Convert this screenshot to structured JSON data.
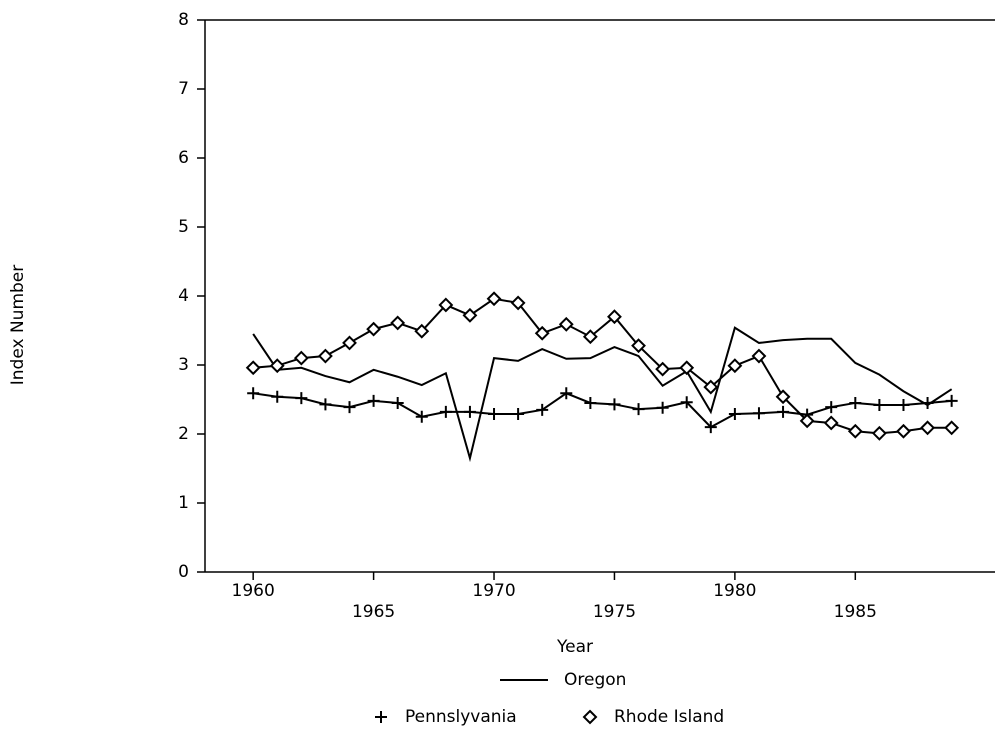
{
  "chart_data": {
    "type": "line",
    "x_label": "Year",
    "y_label": "Index Number",
    "x": [
      1960,
      1961,
      1962,
      1963,
      1964,
      1965,
      1966,
      1967,
      1968,
      1969,
      1970,
      1971,
      1972,
      1973,
      1974,
      1975,
      1976,
      1977,
      1978,
      1979,
      1980,
      1981,
      1982,
      1983,
      1984,
      1985,
      1986,
      1987,
      1988,
      1989
    ],
    "series": [
      {
        "name": "Oregon",
        "marker": "none",
        "color": "#000000",
        "values": [
          3.45,
          2.93,
          2.96,
          2.84,
          2.75,
          2.93,
          2.83,
          2.71,
          2.88,
          1.65,
          3.1,
          3.06,
          3.23,
          3.09,
          3.1,
          3.26,
          3.13,
          2.7,
          2.91,
          2.32,
          3.54,
          3.32,
          3.36,
          3.38,
          3.38,
          3.03,
          2.86,
          2.62,
          2.42,
          2.65
        ]
      },
      {
        "name": "Pennslyvania",
        "marker": "plus",
        "color": "#000000",
        "values": [
          2.59,
          2.54,
          2.52,
          2.43,
          2.39,
          2.48,
          2.45,
          2.25,
          2.32,
          2.32,
          2.29,
          2.29,
          2.35,
          2.59,
          2.45,
          2.43,
          2.36,
          2.38,
          2.46,
          2.1,
          2.29,
          2.3,
          2.32,
          2.28,
          2.39,
          2.45,
          2.42,
          2.42,
          2.45,
          2.48
        ]
      },
      {
        "name": "Rhode Island",
        "marker": "diamond",
        "color": "#000000",
        "values": [
          2.96,
          2.99,
          3.1,
          3.13,
          3.32,
          3.52,
          3.61,
          3.49,
          3.87,
          3.72,
          3.96,
          3.9,
          3.46,
          3.59,
          3.41,
          3.7,
          3.28,
          2.94,
          2.96,
          2.68,
          2.99,
          3.13,
          2.54,
          2.19,
          2.16,
          2.04,
          2.01,
          2.04,
          2.09,
          2.09
        ]
      }
    ],
    "xlim": [
      1958,
      1990.8
    ],
    "xticks": [
      1960,
      1965,
      1970,
      1975,
      1980,
      1985
    ],
    "ylim": [
      0,
      8
    ],
    "yticks": [
      0,
      1,
      2,
      3,
      4,
      5,
      6,
      7,
      8
    ],
    "grid": false
  }
}
